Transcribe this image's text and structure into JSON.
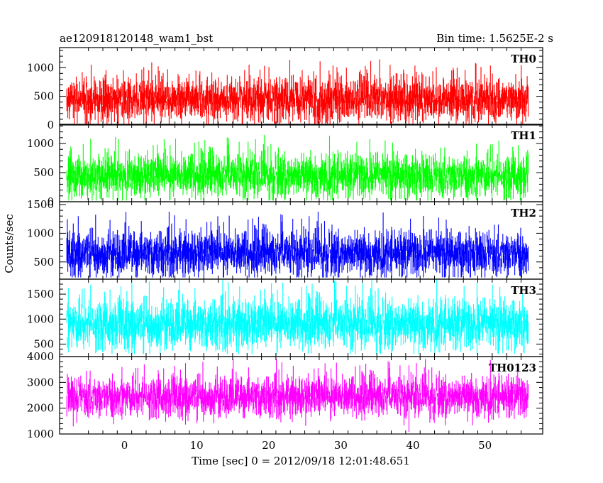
{
  "chart_data": {
    "type": "line",
    "title_left": "ae120918120148_wam1_bst",
    "title_right": "Bin time: 1.5625E-2 s",
    "ylabel": "Counts/sec",
    "xlabel": "Time [sec] 0 = 2012/09/18 12:01:48.651",
    "xlim": [
      -9,
      58
    ],
    "data_xrange": [
      -8,
      56
    ],
    "x_ticks": [
      0,
      10,
      20,
      30,
      40,
      50
    ],
    "panels": [
      {
        "name": "TH0",
        "color": "#ff0000",
        "ylim": [
          0,
          1350
        ],
        "y_ticks": [
          0,
          500,
          1000
        ],
        "mean": 450,
        "spread": 260,
        "min": 20,
        "max": 1350
      },
      {
        "name": "TH1",
        "color": "#00ff00",
        "ylim": [
          0,
          1330
        ],
        "y_ticks": [
          0,
          500,
          1000
        ],
        "mean": 450,
        "spread": 250,
        "min": 20,
        "max": 1330
      },
      {
        "name": "TH2",
        "color": "#0000ff",
        "ylim": [
          200,
          1550
        ],
        "y_ticks": [
          500,
          1000,
          1500
        ],
        "mean": 650,
        "spread": 260,
        "min": 230,
        "max": 1550
      },
      {
        "name": "TH3",
        "color": "#00ffff",
        "ylim": [
          250,
          1800
        ],
        "y_ticks": [
          500,
          1000,
          1500
        ],
        "mean": 900,
        "spread": 330,
        "min": 300,
        "max": 1800
      },
      {
        "name": "TH0123",
        "color": "#ff00ff",
        "ylim": [
          1000,
          4000
        ],
        "y_ticks": [
          1000,
          2000,
          3000,
          4000
        ],
        "mean": 2450,
        "spread": 520,
        "min": 1050,
        "max": 4000
      }
    ]
  }
}
